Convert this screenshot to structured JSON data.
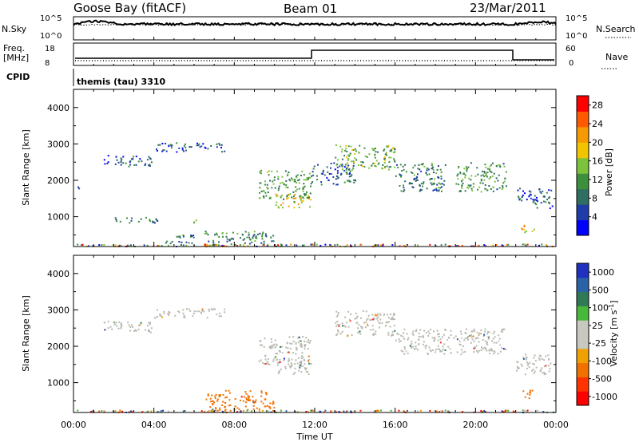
{
  "header": {
    "station": "Goose Bay (fitACF)",
    "beam": "Beam 01",
    "date": "23/Mar/2011"
  },
  "status_panel": {
    "nsky_label": "N.Sky",
    "nsky_top": "10^5",
    "nsky_bottom": "10^0",
    "nsearch_label": "N.Search",
    "nsearch_top": "10^5",
    "nsearch_bottom": "10^0",
    "freq_label": "Freq.",
    "freq_unit": "[MHz]",
    "freq_ticks": [
      "18",
      "8"
    ],
    "nave_label": "Nave",
    "nave_ticks": [
      "60",
      "0"
    ],
    "cpid_label": "CPID",
    "cpid_value": "themis (tau) 3310"
  },
  "colors": {
    "power_scale": [
      "#0000ff",
      "#1f3ca8",
      "#2f6e60",
      "#3d8f3c",
      "#7cc23a",
      "#f2c400",
      "#f59a00",
      "#ff5a00",
      "#ff0000"
    ],
    "velocity_scale": [
      "#2030c0",
      "#2a62a8",
      "#2f7a55",
      "#48b83a",
      "#c8c8c0",
      "#c8c8c0",
      "#f0a000",
      "#f07000",
      "#ff3300",
      "#ff0000"
    ],
    "ground_scatter": "#b9b9b0"
  },
  "chart_data": [
    {
      "type": "heatmap",
      "name": "power",
      "xlabel": "",
      "ylabel": "Slant Range [km]",
      "xlim": [
        0,
        24
      ],
      "ylim": [
        180,
        4500
      ],
      "yticks": [
        "1000",
        "2000",
        "3000",
        "4000"
      ],
      "colorbar": {
        "label": "Power [dB]",
        "ticks": [
          "4",
          "8",
          "12",
          "16",
          "20",
          "24",
          "28"
        ],
        "range": [
          0,
          30
        ]
      },
      "regions": [
        {
          "t": [
            0.2,
            0.4
          ],
          "r": [
            1650,
            1850
          ],
          "value": 6
        },
        {
          "t": [
            1.5,
            4.0
          ],
          "r": [
            2400,
            2700
          ],
          "value": 6
        },
        {
          "t": [
            4.0,
            7.5
          ],
          "r": [
            2800,
            3050
          ],
          "value": 6
        },
        {
          "t": [
            1.8,
            4.2
          ],
          "r": [
            850,
            1000
          ],
          "value": 9
        },
        {
          "t": [
            5.6,
            6.2
          ],
          "r": [
            850,
            950
          ],
          "value": 14
        },
        {
          "t": [
            4.5,
            6.0
          ],
          "r": [
            280,
            520
          ],
          "value": 8
        },
        {
          "t": [
            6.5,
            10.0
          ],
          "r": [
            230,
            620
          ],
          "value": 10
        },
        {
          "t": [
            9.2,
            11.8
          ],
          "r": [
            1500,
            2300
          ],
          "value": 12
        },
        {
          "t": [
            10.0,
            11.8
          ],
          "r": [
            1250,
            1650
          ],
          "value": 17
        },
        {
          "t": [
            11.8,
            14.0
          ],
          "r": [
            1900,
            2500
          ],
          "value": 7
        },
        {
          "t": [
            13.0,
            16.0
          ],
          "r": [
            2300,
            3000
          ],
          "value": 13
        },
        {
          "t": [
            16.0,
            18.5
          ],
          "r": [
            1700,
            2500
          ],
          "value": 9
        },
        {
          "t": [
            19.0,
            21.5
          ],
          "r": [
            1700,
            2500
          ],
          "value": 11
        },
        {
          "t": [
            22.0,
            23.8
          ],
          "r": [
            1250,
            1800
          ],
          "value": 6
        },
        {
          "t": [
            22.2,
            22.9
          ],
          "r": [
            580,
            820
          ],
          "value": 20
        }
      ]
    },
    {
      "type": "heatmap",
      "name": "velocity",
      "xlabel": "Time UT",
      "ylabel": "Slant Range [km]",
      "xlim": [
        0,
        24
      ],
      "ylim": [
        180,
        4500
      ],
      "xticks": [
        "00:00",
        "04:00",
        "08:00",
        "12:00",
        "16:00",
        "20:00",
        "00:00"
      ],
      "yticks": [
        "1000",
        "2000",
        "3000",
        "4000"
      ],
      "colorbar": {
        "label": "Velocity [m s-1]",
        "ticks": [
          "1000",
          "500",
          "100",
          "25",
          "-25",
          "-100",
          "-500",
          "-1000"
        ]
      },
      "regions": [
        {
          "t": [
            1.5,
            4.0
          ],
          "r": [
            2400,
            2700
          ],
          "value": 0
        },
        {
          "t": [
            4.0,
            7.5
          ],
          "r": [
            2800,
            3050
          ],
          "value": 0
        },
        {
          "t": [
            9.2,
            11.8
          ],
          "r": [
            1500,
            2300
          ],
          "value": 0
        },
        {
          "t": [
            10.0,
            11.8
          ],
          "r": [
            1250,
            1650
          ],
          "value": 0
        },
        {
          "t": [
            13.0,
            16.0
          ],
          "r": [
            2300,
            3000
          ],
          "value": 0
        },
        {
          "t": [
            16.0,
            21.5
          ],
          "r": [
            1800,
            2500
          ],
          "value": 0
        },
        {
          "t": [
            22.0,
            23.8
          ],
          "r": [
            1250,
            1800
          ],
          "value": 0
        },
        {
          "t": [
            6.5,
            10.0
          ],
          "r": [
            230,
            800
          ],
          "value": -300
        },
        {
          "t": [
            22.2,
            22.9
          ],
          "r": [
            580,
            820
          ],
          "value": -300
        }
      ]
    }
  ],
  "xaxis": {
    "label": "Time UT",
    "ticks": [
      "00:00",
      "04:00",
      "08:00",
      "12:00",
      "16:00",
      "20:00",
      "00:00"
    ]
  }
}
